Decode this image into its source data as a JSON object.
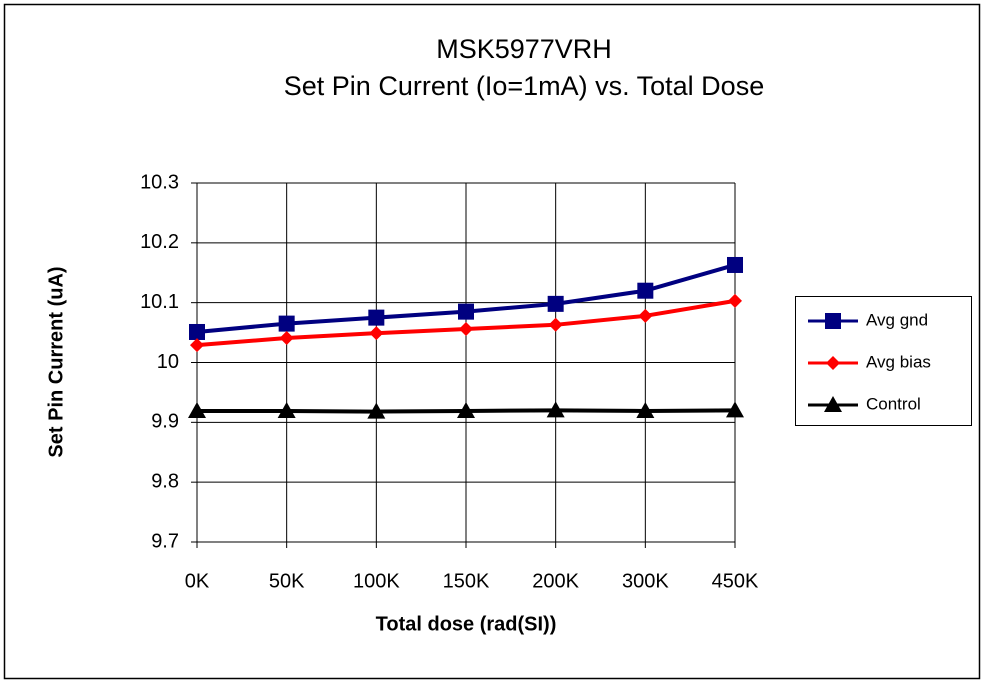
{
  "chart_data": {
    "type": "line",
    "title": [
      "MSK5977VRH",
      "Set Pin Current (Io=1mA) vs. Total Dose"
    ],
    "x_label": "Total dose (rad(SI))",
    "y_label": "Set Pin Current (uA)",
    "categories": [
      "0K",
      "50K",
      "100K",
      "150K",
      "200K",
      "300K",
      "450K"
    ],
    "series": [
      {
        "name": "Avg gnd",
        "color": "#000080",
        "marker": "square",
        "values": [
          10.051,
          10.065,
          10.075,
          10.085,
          10.098,
          10.12,
          10.163
        ]
      },
      {
        "name": "Avg bias",
        "color": "#ff0000",
        "marker": "diamond",
        "values": [
          10.029,
          10.041,
          10.049,
          10.056,
          10.063,
          10.078,
          10.103
        ]
      },
      {
        "name": "Control",
        "color": "#000000",
        "marker": "triangle",
        "values": [
          9.919,
          9.919,
          9.918,
          9.919,
          9.92,
          9.919,
          9.92
        ]
      }
    ],
    "ylim": [
      9.7,
      10.3
    ],
    "yticks": [
      9.7,
      9.8,
      9.9,
      10,
      10.1,
      10.2,
      10.3
    ],
    "grid": true,
    "legend": "right"
  }
}
